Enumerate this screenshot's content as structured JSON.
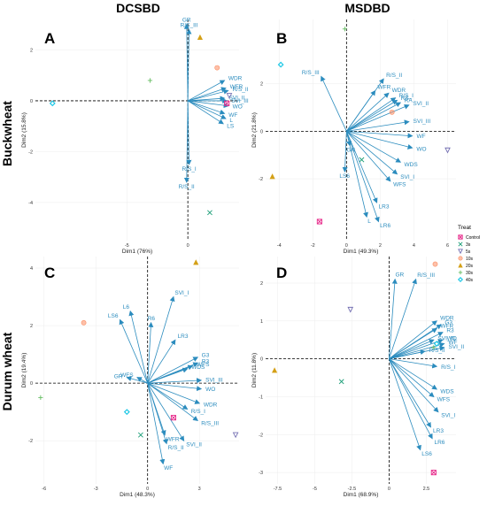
{
  "figure": {
    "columns": [
      "DCSBD",
      "MSDBD"
    ],
    "rows": [
      "Buckwheat",
      "Durum wheat"
    ],
    "arrow_color": "#2b8cbe"
  },
  "legend": {
    "title": "Treat",
    "items": [
      {
        "label": "Control",
        "shape": "square-x",
        "color": "#e7298a"
      },
      {
        "label": "3s",
        "shape": "x",
        "color": "#1b9e77"
      },
      {
        "label": "5s",
        "shape": "triangle-down",
        "color": "#7570b3"
      },
      {
        "label": "10s",
        "shape": "circle-x",
        "color": "#fc8d62"
      },
      {
        "label": "20s",
        "shape": "triangle",
        "color": "#d4a017"
      },
      {
        "label": "30s",
        "shape": "plus",
        "color": "#66bd63"
      },
      {
        "label": "40s",
        "shape": "diamond",
        "color": "#1ec8e6"
      }
    ]
  },
  "chart_data": [
    {
      "type": "scatter",
      "subtype": "pca-biplot",
      "panel": "A",
      "column": "DCSBD",
      "row": "Buckwheat",
      "xlabel": "Dim1 (76%)",
      "ylabel": "Dim2 (15.8%)",
      "xlim": [
        -12.5,
        4.2
      ],
      "ylim": [
        -5.5,
        3.2
      ],
      "xticks": [
        -5,
        0
      ],
      "yticks": [
        -4,
        -2,
        0,
        2
      ],
      "points": [
        {
          "treat": "Control",
          "x": 3.2,
          "y": -0.1
        },
        {
          "treat": "3s",
          "x": 1.8,
          "y": -4.4
        },
        {
          "treat": "5s",
          "x": 3.4,
          "y": 0.2
        },
        {
          "treat": "10s",
          "x": 2.4,
          "y": 1.3
        },
        {
          "treat": "20s",
          "x": 1.0,
          "y": 2.5
        },
        {
          "treat": "30s",
          "x": -3.1,
          "y": 0.8
        },
        {
          "treat": "40s",
          "x": -11.1,
          "y": -0.1
        }
      ],
      "arrows": [
        {
          "label": "GR",
          "x": -0.1,
          "y": 3.0
        },
        {
          "label": "R/S_III",
          "x": 0.1,
          "y": 2.8
        },
        {
          "label": "WDR",
          "x": 3.0,
          "y": 0.8
        },
        {
          "label": "WFR",
          "x": 3.1,
          "y": 0.5
        },
        {
          "label": "R/S_II",
          "x": 3.3,
          "y": 0.4
        },
        {
          "label": "SVI_II",
          "x": 3.0,
          "y": 0.1
        },
        {
          "label": "SVI_III",
          "x": 3.2,
          "y": 0.0
        },
        {
          "label": "WO",
          "x": 3.3,
          "y": -0.2
        },
        {
          "label": "WF",
          "x": 3.0,
          "y": -0.5
        },
        {
          "label": "L",
          "x": 3.1,
          "y": -0.7
        },
        {
          "label": "LS",
          "x": 2.9,
          "y": -0.9
        },
        {
          "label": "R/S_I",
          "x": 0.1,
          "y": -2.5
        },
        {
          "label": "R/S_II",
          "x": -0.1,
          "y": -3.2
        }
      ]
    },
    {
      "type": "scatter",
      "subtype": "pca-biplot",
      "panel": "B",
      "column": "MSDBD",
      "row": "Buckwheat",
      "xlabel": "Dim1 (49.3%)",
      "ylabel": "Dim2 (21.8%)",
      "xlim": [
        -4.8,
        6.5
      ],
      "ylim": [
        -4.6,
        4.7
      ],
      "xticks": [
        -4,
        -2,
        0,
        2,
        4,
        6
      ],
      "yticks": [
        -2,
        0,
        2
      ],
      "points": [
        {
          "treat": "Control",
          "x": -1.6,
          "y": -3.8
        },
        {
          "treat": "3s",
          "x": 0.9,
          "y": -1.2
        },
        {
          "treat": "5s",
          "x": 6.0,
          "y": -0.8
        },
        {
          "treat": "10s",
          "x": 2.7,
          "y": 0.8
        },
        {
          "treat": "20s",
          "x": -4.4,
          "y": -1.9
        },
        {
          "treat": "30s",
          "x": -0.1,
          "y": 4.3
        },
        {
          "treat": "40s",
          "x": -3.9,
          "y": 2.8
        }
      ],
      "arrows": [
        {
          "label": "R/S_III",
          "x": -1.5,
          "y": 2.3
        },
        {
          "label": "R/S_II",
          "x": 2.2,
          "y": 2.2
        },
        {
          "label": "WFR",
          "x": 1.7,
          "y": 1.7
        },
        {
          "label": "WDR",
          "x": 2.5,
          "y": 1.6
        },
        {
          "label": "R/S_I",
          "x": 2.9,
          "y": 1.4
        },
        {
          "label": "RS",
          "x": 3.0,
          "y": 1.3
        },
        {
          "label": "RA",
          "x": 3.2,
          "y": 1.2
        },
        {
          "label": "SVI_II",
          "x": 3.7,
          "y": 1.1
        },
        {
          "label": "SVI_III",
          "x": 3.7,
          "y": 0.4
        },
        {
          "label": "GR",
          "x": 0.2,
          "y": -0.6
        },
        {
          "label": "WF",
          "x": 3.9,
          "y": -0.2
        },
        {
          "label": "WO",
          "x": 3.9,
          "y": -0.7
        },
        {
          "label": "WDS",
          "x": 3.2,
          "y": -1.3
        },
        {
          "label": "SVI_I",
          "x": 3.0,
          "y": -1.8
        },
        {
          "label": "WFS",
          "x": 2.6,
          "y": -2.1
        },
        {
          "label": "LS6",
          "x": -0.1,
          "y": -1.7
        },
        {
          "label": "LR3",
          "x": 1.8,
          "y": -3.0
        },
        {
          "label": "L",
          "x": 1.2,
          "y": -3.6
        },
        {
          "label": "LR6",
          "x": 1.9,
          "y": -3.8
        }
      ]
    },
    {
      "type": "scatter",
      "subtype": "pca-biplot",
      "panel": "C",
      "column": "DCSBD",
      "row": "Durum wheat",
      "xlabel": "Dim1 (48.3%)",
      "ylabel": "Dim2 (19.4%)",
      "xlim": [
        -6.5,
        5.3
      ],
      "ylim": [
        -3.5,
        4.4
      ],
      "xticks": [
        -6,
        -3,
        0,
        3
      ],
      "yticks": [
        -2,
        0,
        2,
        4
      ],
      "points": [
        {
          "treat": "Control",
          "x": 1.5,
          "y": -1.2
        },
        {
          "treat": "3s",
          "x": -0.4,
          "y": -1.8
        },
        {
          "treat": "5s",
          "x": 5.1,
          "y": -1.8
        },
        {
          "treat": "10s",
          "x": -3.7,
          "y": 2.1
        },
        {
          "treat": "20s",
          "x": 2.8,
          "y": 4.2
        },
        {
          "treat": "30s",
          "x": -6.2,
          "y": -0.5
        },
        {
          "treat": "40s",
          "x": -1.2,
          "y": -1.0
        }
      ],
      "arrows": [
        {
          "label": "L6",
          "x": -1.0,
          "y": 2.5
        },
        {
          "label": "LS6",
          "x": -1.6,
          "y": 2.2
        },
        {
          "label": "R6",
          "x": 0.2,
          "y": 2.1
        },
        {
          "label": "SVI_I",
          "x": 1.5,
          "y": 3.0
        },
        {
          "label": "LR3",
          "x": 1.6,
          "y": 1.5
        },
        {
          "label": "G3",
          "x": 2.9,
          "y": 0.9
        },
        {
          "label": "WFS",
          "x": 2.6,
          "y": 0.6
        },
        {
          "label": "R3",
          "x": 2.9,
          "y": 0.7
        },
        {
          "label": "WDS",
          "x": 2.3,
          "y": 0.5
        },
        {
          "label": "GR",
          "x": -1.2,
          "y": 0.2
        },
        {
          "label": "WFS",
          "x": -0.6,
          "y": 0.2
        },
        {
          "label": "SVI_III",
          "x": 3.1,
          "y": 0.1
        },
        {
          "label": "WO",
          "x": 3.1,
          "y": -0.2
        },
        {
          "label": "WDR",
          "x": 3.0,
          "y": -0.7
        },
        {
          "label": "R/S_I",
          "x": 2.3,
          "y": -0.9
        },
        {
          "label": "R/S_III",
          "x": 2.9,
          "y": -1.3
        },
        {
          "label": "R/S_II",
          "x": 1.1,
          "y": -2.1
        },
        {
          "label": "SVI_II",
          "x": 2.1,
          "y": -2.0
        },
        {
          "label": "WFR",
          "x": 1.0,
          "y": -1.8
        },
        {
          "label": "WF",
          "x": 0.9,
          "y": -2.8
        }
      ]
    },
    {
      "type": "scatter",
      "subtype": "pca-biplot",
      "panel": "D",
      "column": "MSDBD",
      "row": "Durum wheat",
      "xlabel": "Dim1 (68.9%)",
      "ylabel": "Dim2 (11.8%)",
      "xlim": [
        -8.3,
        4.5
      ],
      "ylim": [
        -3.3,
        2.7
      ],
      "xticks": [
        -7.5,
        -5.0,
        -2.5,
        0.0,
        2.5
      ],
      "yticks": [
        -3,
        -2,
        -1,
        0,
        1,
        2
      ],
      "points": [
        {
          "treat": "Control",
          "x": 3.0,
          "y": -3.0
        },
        {
          "treat": "3s",
          "x": -3.2,
          "y": -0.6
        },
        {
          "treat": "5s",
          "x": -2.6,
          "y": 1.3
        },
        {
          "treat": "10s",
          "x": 3.1,
          "y": 2.5
        },
        {
          "treat": "20s",
          "x": -7.7,
          "y": -0.3
        },
        {
          "treat": "30s",
          "x": 3.0,
          "y": 0.3
        },
        {
          "treat": "40s",
          "x": 3.2,
          "y": 0.4
        }
      ],
      "arrows": [
        {
          "label": "GR",
          "x": 0.4,
          "y": 2.1
        },
        {
          "label": "R/S_III",
          "x": 1.8,
          "y": 2.1
        },
        {
          "label": "WDR",
          "x": 3.2,
          "y": 1.0
        },
        {
          "label": "G3",
          "x": 3.5,
          "y": 0.9
        },
        {
          "label": "WFR",
          "x": 3.2,
          "y": 0.8
        },
        {
          "label": "R3",
          "x": 3.6,
          "y": 0.7
        },
        {
          "label": "SVI_III",
          "x": 3.0,
          "y": 0.5
        },
        {
          "label": "WO",
          "x": 3.6,
          "y": 0.5
        },
        {
          "label": "WF",
          "x": 3.7,
          "y": 0.4
        },
        {
          "label": "SVI_II",
          "x": 3.7,
          "y": 0.3
        },
        {
          "label": "R/S_II",
          "x": 2.4,
          "y": 0.2
        },
        {
          "label": "R/S_I",
          "x": 3.2,
          "y": -0.2
        },
        {
          "label": "WDS",
          "x": 3.2,
          "y": -0.8
        },
        {
          "label": "WFS",
          "x": 3.0,
          "y": -1.0
        },
        {
          "label": "SVI_I",
          "x": 3.3,
          "y": -1.4
        },
        {
          "label": "LR3",
          "x": 2.8,
          "y": -1.8
        },
        {
          "label": "LR6",
          "x": 2.9,
          "y": -2.1
        },
        {
          "label": "LS6",
          "x": 2.1,
          "y": -2.4
        }
      ]
    }
  ]
}
